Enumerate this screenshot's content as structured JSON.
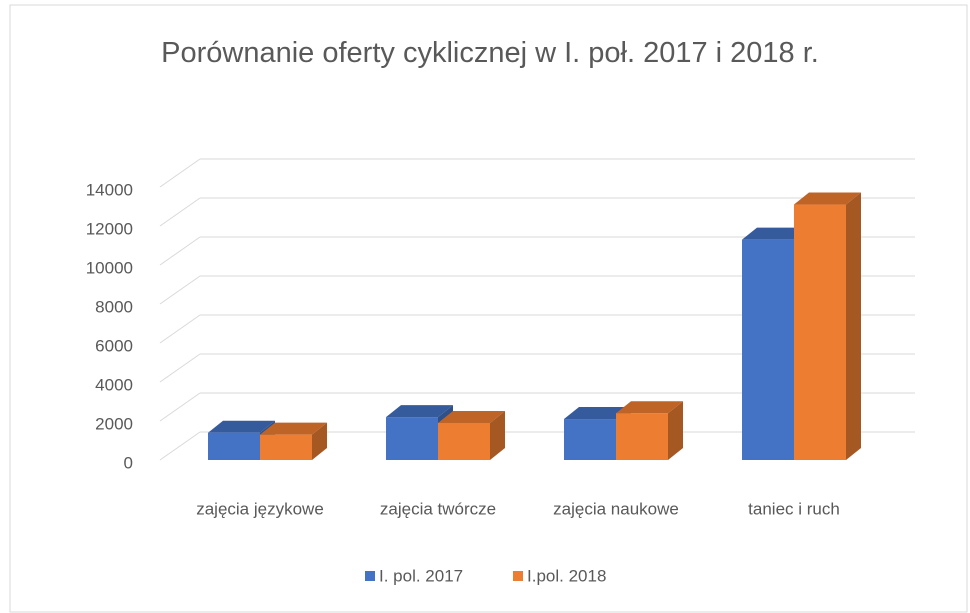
{
  "chart_data": {
    "type": "bar3d",
    "title": "Porównanie oferty cyklicznej w I. poł. 2017 i 2018 r.",
    "categories": [
      "zajęcia językowe",
      "zajęcia twórcze",
      "zajęcia naukowe",
      "taniec i ruch"
    ],
    "series": [
      {
        "name": "I. pol. 2017",
        "color": "#4472c4",
        "values": [
          1400,
          2200,
          2100,
          11300
        ]
      },
      {
        "name": "I.pol. 2018",
        "color": "#ed7d31",
        "values": [
          1300,
          1900,
          2400,
          13100
        ]
      }
    ],
    "ylim": [
      0,
      14000
    ],
    "yticks": [
      0,
      2000,
      4000,
      6000,
      8000,
      10000,
      12000,
      14000
    ],
    "grid": true,
    "legend": "bottom"
  }
}
